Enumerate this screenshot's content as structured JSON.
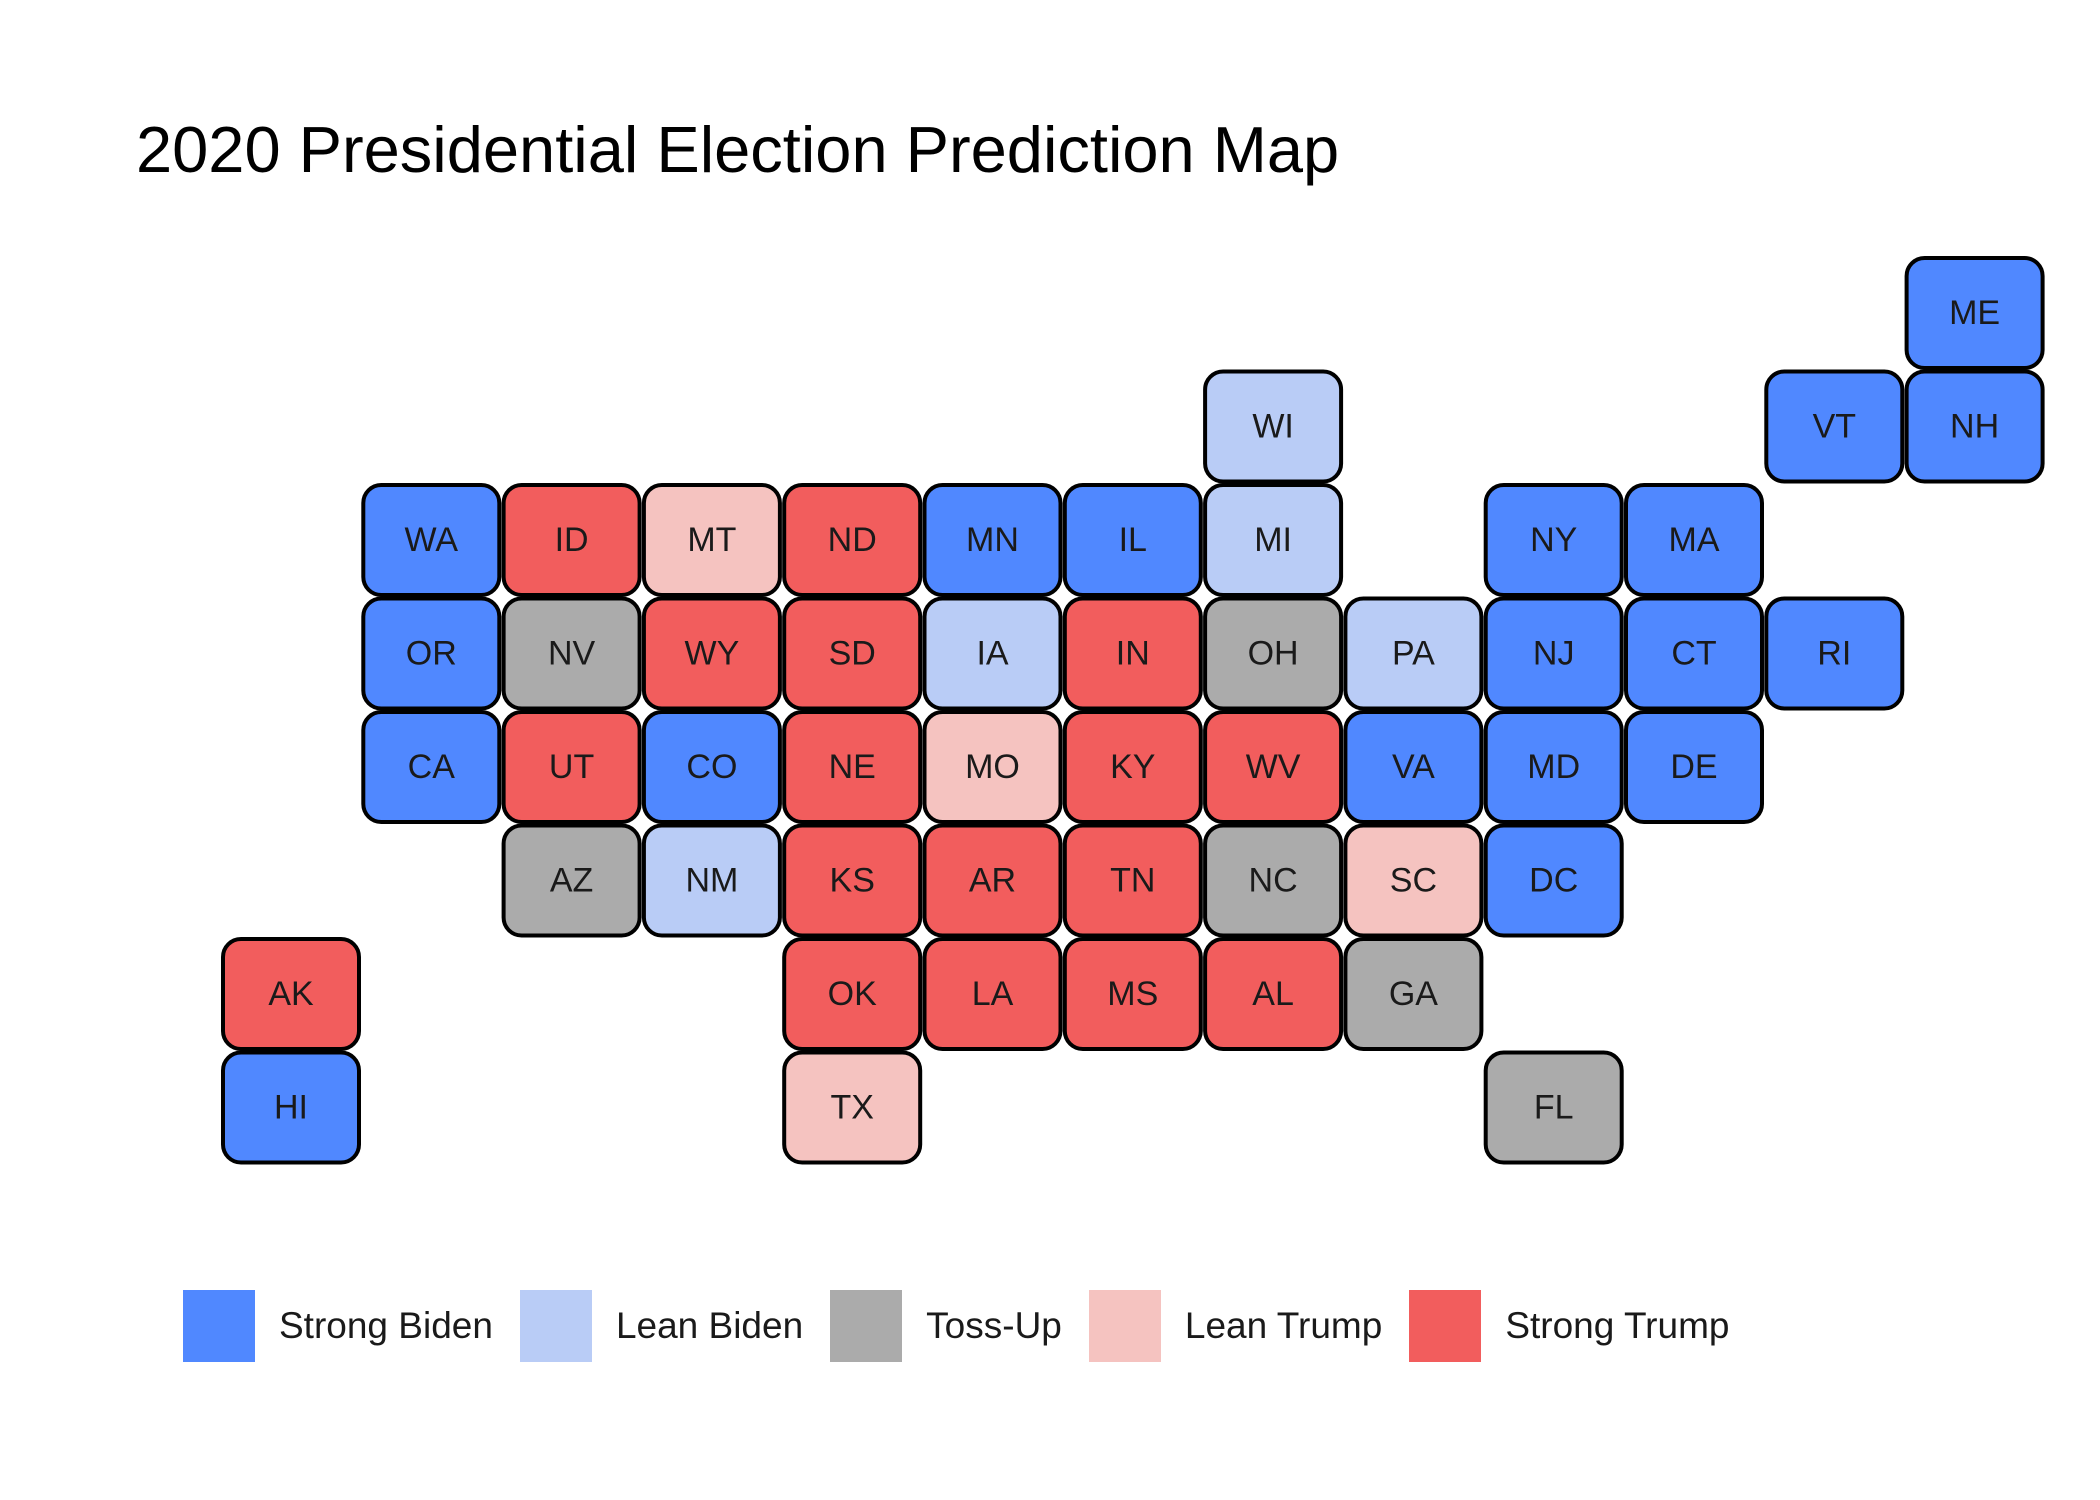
{
  "title": "2020 Presidential Election Prediction Map",
  "categories": [
    {
      "key": "strong_biden",
      "label": "Strong Biden",
      "color": "#5088FF"
    },
    {
      "key": "lean_biden",
      "label": "Lean Biden",
      "color": "#B9CCF6"
    },
    {
      "key": "toss_up",
      "label": "Toss-Up",
      "color": "#ABABAB"
    },
    {
      "key": "lean_trump",
      "label": "Lean Trump",
      "color": "#F5C3C0"
    },
    {
      "key": "strong_trump",
      "label": "Strong Trump",
      "color": "#F25D5D"
    }
  ],
  "chart_data": {
    "type": "tile-grid-map",
    "title": "2020 Presidential Election Prediction Map",
    "legend_position": "bottom",
    "states": [
      {
        "abbr": "ME",
        "col": 12,
        "row": 0,
        "category": "strong_biden"
      },
      {
        "abbr": "WI",
        "col": 7,
        "row": 1,
        "category": "lean_biden"
      },
      {
        "abbr": "VT",
        "col": 11,
        "row": 1,
        "category": "strong_biden"
      },
      {
        "abbr": "NH",
        "col": 12,
        "row": 1,
        "category": "strong_biden"
      },
      {
        "abbr": "WA",
        "col": 1,
        "row": 2,
        "category": "strong_biden"
      },
      {
        "abbr": "ID",
        "col": 2,
        "row": 2,
        "category": "strong_trump"
      },
      {
        "abbr": "MT",
        "col": 3,
        "row": 2,
        "category": "lean_trump"
      },
      {
        "abbr": "ND",
        "col": 4,
        "row": 2,
        "category": "strong_trump"
      },
      {
        "abbr": "MN",
        "col": 5,
        "row": 2,
        "category": "strong_biden"
      },
      {
        "abbr": "IL",
        "col": 6,
        "row": 2,
        "category": "strong_biden"
      },
      {
        "abbr": "MI",
        "col": 7,
        "row": 2,
        "category": "lean_biden"
      },
      {
        "abbr": "NY",
        "col": 9,
        "row": 2,
        "category": "strong_biden"
      },
      {
        "abbr": "MA",
        "col": 10,
        "row": 2,
        "category": "strong_biden"
      },
      {
        "abbr": "OR",
        "col": 1,
        "row": 3,
        "category": "strong_biden"
      },
      {
        "abbr": "NV",
        "col": 2,
        "row": 3,
        "category": "toss_up"
      },
      {
        "abbr": "WY",
        "col": 3,
        "row": 3,
        "category": "strong_trump"
      },
      {
        "abbr": "SD",
        "col": 4,
        "row": 3,
        "category": "strong_trump"
      },
      {
        "abbr": "IA",
        "col": 5,
        "row": 3,
        "category": "lean_biden"
      },
      {
        "abbr": "IN",
        "col": 6,
        "row": 3,
        "category": "strong_trump"
      },
      {
        "abbr": "OH",
        "col": 7,
        "row": 3,
        "category": "toss_up"
      },
      {
        "abbr": "PA",
        "col": 8,
        "row": 3,
        "category": "lean_biden"
      },
      {
        "abbr": "NJ",
        "col": 9,
        "row": 3,
        "category": "strong_biden"
      },
      {
        "abbr": "CT",
        "col": 10,
        "row": 3,
        "category": "strong_biden"
      },
      {
        "abbr": "RI",
        "col": 11,
        "row": 3,
        "category": "strong_biden"
      },
      {
        "abbr": "CA",
        "col": 1,
        "row": 4,
        "category": "strong_biden"
      },
      {
        "abbr": "UT",
        "col": 2,
        "row": 4,
        "category": "strong_trump"
      },
      {
        "abbr": "CO",
        "col": 3,
        "row": 4,
        "category": "strong_biden"
      },
      {
        "abbr": "NE",
        "col": 4,
        "row": 4,
        "category": "strong_trump"
      },
      {
        "abbr": "MO",
        "col": 5,
        "row": 4,
        "category": "lean_trump"
      },
      {
        "abbr": "KY",
        "col": 6,
        "row": 4,
        "category": "strong_trump"
      },
      {
        "abbr": "WV",
        "col": 7,
        "row": 4,
        "category": "strong_trump"
      },
      {
        "abbr": "VA",
        "col": 8,
        "row": 4,
        "category": "strong_biden"
      },
      {
        "abbr": "MD",
        "col": 9,
        "row": 4,
        "category": "strong_biden"
      },
      {
        "abbr": "DE",
        "col": 10,
        "row": 4,
        "category": "strong_biden"
      },
      {
        "abbr": "AZ",
        "col": 2,
        "row": 5,
        "category": "toss_up"
      },
      {
        "abbr": "NM",
        "col": 3,
        "row": 5,
        "category": "lean_biden"
      },
      {
        "abbr": "KS",
        "col": 4,
        "row": 5,
        "category": "strong_trump"
      },
      {
        "abbr": "AR",
        "col": 5,
        "row": 5,
        "category": "strong_trump"
      },
      {
        "abbr": "TN",
        "col": 6,
        "row": 5,
        "category": "strong_trump"
      },
      {
        "abbr": "NC",
        "col": 7,
        "row": 5,
        "category": "toss_up"
      },
      {
        "abbr": "SC",
        "col": 8,
        "row": 5,
        "category": "lean_trump"
      },
      {
        "abbr": "DC",
        "col": 9,
        "row": 5,
        "category": "strong_biden"
      },
      {
        "abbr": "AK",
        "col": 0,
        "row": 6,
        "category": "strong_trump"
      },
      {
        "abbr": "OK",
        "col": 4,
        "row": 6,
        "category": "strong_trump"
      },
      {
        "abbr": "LA",
        "col": 5,
        "row": 6,
        "category": "strong_trump"
      },
      {
        "abbr": "MS",
        "col": 6,
        "row": 6,
        "category": "strong_trump"
      },
      {
        "abbr": "AL",
        "col": 7,
        "row": 6,
        "category": "strong_trump"
      },
      {
        "abbr": "GA",
        "col": 8,
        "row": 6,
        "category": "toss_up"
      },
      {
        "abbr": "HI",
        "col": 0,
        "row": 7,
        "category": "strong_biden"
      },
      {
        "abbr": "TX",
        "col": 4,
        "row": 7,
        "category": "lean_trump"
      },
      {
        "abbr": "FL",
        "col": 9,
        "row": 7,
        "category": "toss_up"
      }
    ]
  }
}
